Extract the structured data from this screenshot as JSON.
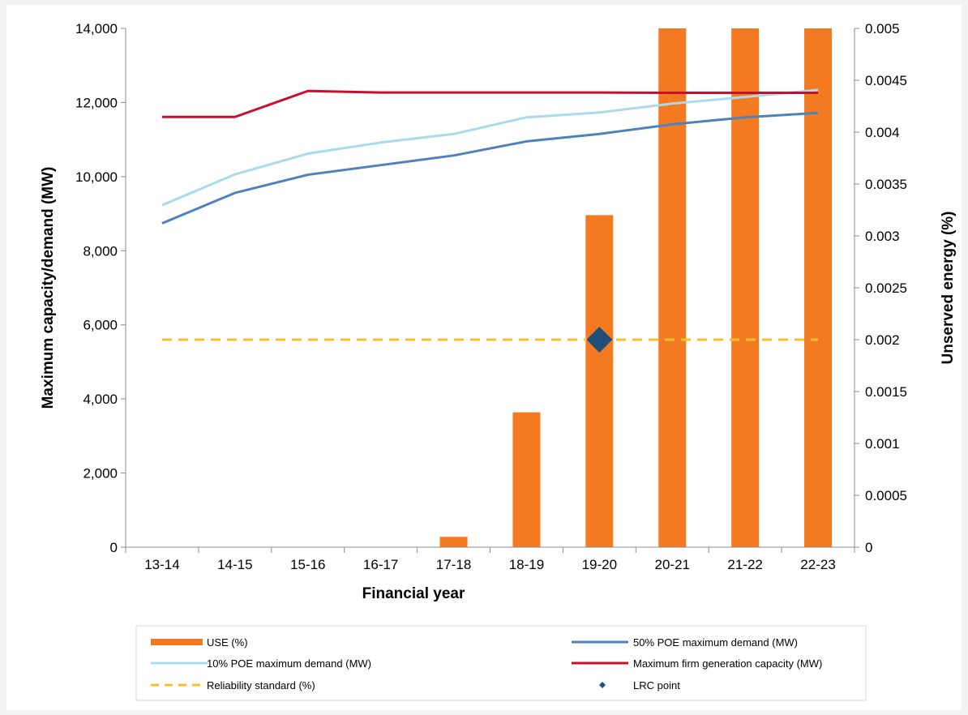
{
  "chart_data": {
    "type": "bar",
    "title": "",
    "xlabel": "Financial year",
    "ylabel_left": "Maximum capacity/demand (MW)",
    "ylabel_right": "Unserved energy (%)",
    "categories": [
      "13-14",
      "14-15",
      "15-16",
      "16-17",
      "17-18",
      "18-19",
      "19-20",
      "20-21",
      "21-22",
      "22-23"
    ],
    "ylim_left": [
      0,
      14000
    ],
    "ylim_right": [
      0,
      0.005
    ],
    "yticks_left": [
      "0",
      "2,000",
      "4,000",
      "6,000",
      "8,000",
      "10,000",
      "12,000",
      "14,000"
    ],
    "yticks_right": [
      "0",
      "0.0005",
      "0.001",
      "0.0015",
      "0.002",
      "0.0025",
      "0.003",
      "0.0035",
      "0.004",
      "0.0045",
      "0.005"
    ],
    "grid": false,
    "legend_position": "bottom",
    "series": [
      {
        "name": "USE (%)",
        "kind": "bar",
        "axis": "right",
        "color": "#f37a21",
        "values": [
          0,
          0,
          0,
          0,
          0.0001,
          0.0013,
          0.0032,
          0.005,
          0.005,
          0.005
        ]
      },
      {
        "name": "50% POE maximum demand (MW)",
        "kind": "line",
        "axis": "left",
        "color": "#4f81bd",
        "values": [
          8740,
          9560,
          10050,
          10310,
          10570,
          10950,
          11150,
          11410,
          11600,
          11720
        ]
      },
      {
        "name": "10% POE maximum demand (MW)",
        "kind": "line",
        "axis": "left",
        "color": "#a8dcec",
        "values": [
          9230,
          10060,
          10620,
          10920,
          11150,
          11600,
          11730,
          11970,
          12150,
          12340
        ]
      },
      {
        "name": "Maximum firm generation capacity (MW)",
        "kind": "line",
        "axis": "left",
        "color": "#c8102e",
        "values": [
          11610,
          11610,
          12310,
          12270,
          12270,
          12270,
          12270,
          12260,
          12260,
          12260
        ]
      },
      {
        "name": "Reliability standard (%)",
        "kind": "dashed",
        "axis": "right",
        "color": "#fdbf2d",
        "values": [
          0.002,
          0.002,
          0.002,
          0.002,
          0.002,
          0.002,
          0.002,
          0.002,
          0.002,
          0.002
        ]
      },
      {
        "name": "LRC point",
        "kind": "marker",
        "axis": "right",
        "color": "#1f4e79",
        "points": [
          {
            "x": "19-20",
            "y": 0.002
          }
        ]
      }
    ]
  }
}
